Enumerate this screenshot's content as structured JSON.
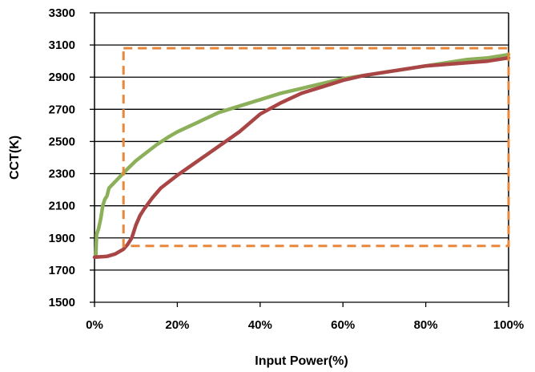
{
  "chart_data": {
    "type": "line",
    "title": "",
    "xlabel": "Input Power(%)",
    "ylabel": "CCT(K)",
    "xlim": [
      0,
      100
    ],
    "ylim": [
      1500,
      3300
    ],
    "x_ticks": [
      0,
      20,
      40,
      60,
      80,
      100
    ],
    "x_tick_labels": [
      "0%",
      "20%",
      "40%",
      "60%",
      "80%",
      "100%"
    ],
    "y_ticks": [
      1500,
      1700,
      1900,
      2100,
      2300,
      2500,
      2700,
      2900,
      3100,
      3300
    ],
    "y_tick_labels": [
      "1500",
      "1700",
      "1900",
      "2100",
      "2300",
      "2500",
      "2700",
      "2900",
      "3100",
      "3300"
    ],
    "grid": "horizontal",
    "series": [
      {
        "color": "#8cb05a",
        "points": [
          [
            0.3,
            1780
          ],
          [
            0.5,
            1920
          ],
          [
            1,
            1960
          ],
          [
            1.5,
            2020
          ],
          [
            2,
            2100
          ],
          [
            2.5,
            2140
          ],
          [
            3,
            2160
          ],
          [
            3.5,
            2210
          ],
          [
            5,
            2250
          ],
          [
            6.5,
            2290
          ],
          [
            8,
            2330
          ],
          [
            10,
            2380
          ],
          [
            12,
            2420
          ],
          [
            15,
            2480
          ],
          [
            18,
            2530
          ],
          [
            20,
            2560
          ],
          [
            25,
            2620
          ],
          [
            30,
            2680
          ],
          [
            35,
            2720
          ],
          [
            40,
            2760
          ],
          [
            45,
            2800
          ],
          [
            50,
            2830
          ],
          [
            55,
            2860
          ],
          [
            60,
            2890
          ],
          [
            65,
            2910
          ],
          [
            70,
            2930
          ],
          [
            75,
            2950
          ],
          [
            80,
            2970
          ],
          [
            85,
            2990
          ],
          [
            90,
            3010
          ],
          [
            95,
            3020
          ],
          [
            100,
            3040
          ]
        ]
      },
      {
        "color": "#a94545",
        "points": [
          [
            0,
            1780
          ],
          [
            3,
            1785
          ],
          [
            5,
            1800
          ],
          [
            7,
            1830
          ],
          [
            8,
            1860
          ],
          [
            9,
            1900
          ],
          [
            10,
            1980
          ],
          [
            11,
            2040
          ],
          [
            12,
            2080
          ],
          [
            14,
            2150
          ],
          [
            16,
            2210
          ],
          [
            20,
            2290
          ],
          [
            25,
            2380
          ],
          [
            30,
            2470
          ],
          [
            35,
            2560
          ],
          [
            40,
            2670
          ],
          [
            45,
            2740
          ],
          [
            50,
            2800
          ],
          [
            55,
            2840
          ],
          [
            60,
            2880
          ],
          [
            65,
            2910
          ],
          [
            70,
            2930
          ],
          [
            75,
            2950
          ],
          [
            80,
            2970
          ],
          [
            85,
            2980
          ],
          [
            90,
            2990
          ],
          [
            95,
            3000
          ],
          [
            100,
            3020
          ]
        ]
      }
    ],
    "annotation_box": {
      "shape": "dashed rectangle",
      "color": "#e8863a",
      "x_range": [
        7,
        100
      ],
      "y_range": [
        1850,
        3080
      ]
    }
  }
}
